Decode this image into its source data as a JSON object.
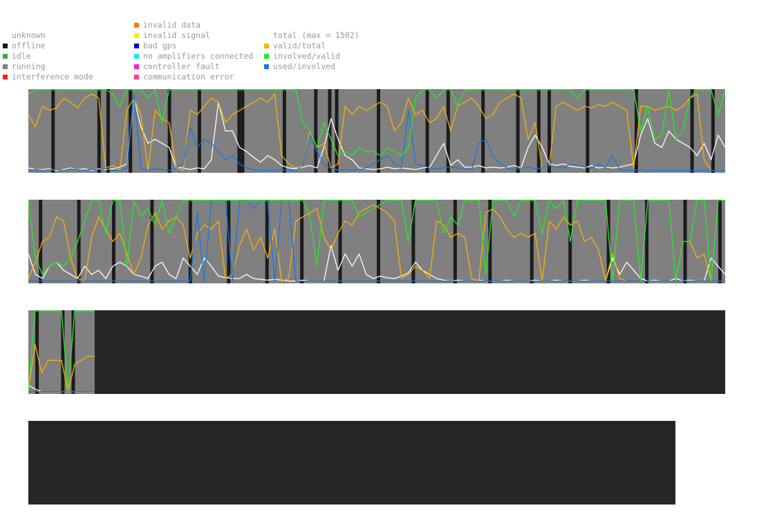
{
  "legend": {
    "status_column_a": [
      {
        "label": "unknown",
        "color": ""
      },
      {
        "label": "offline",
        "color": "#111111"
      },
      {
        "label": "idle",
        "color": "#3aa83a"
      },
      {
        "label": "running",
        "color": "#808080"
      },
      {
        "label": "interference mode",
        "color": "#ff1a1a"
      }
    ],
    "status_column_b": [
      {
        "label": "invalid data",
        "color": "#ff7a00"
      },
      {
        "label": "invalid signal",
        "color": "#f0f000"
      },
      {
        "label": "bad gps",
        "color": "#0000e0"
      },
      {
        "label": "no amplifiers connected",
        "color": "#19e8e8"
      },
      {
        "label": "controller fault",
        "color": "#ff1ad9"
      },
      {
        "label": "communication error",
        "color": "#ff3d84"
      }
    ],
    "series_column": [
      {
        "label": "total (max = 1502)",
        "color": ""
      },
      {
        "label": "valid/total",
        "color": "#ffb000"
      },
      {
        "label": "involved/valid",
        "color": "#22ee22"
      },
      {
        "label": "used/involved",
        "color": "#1478e0"
      }
    ]
  },
  "chart_data": [
    {
      "type": "line",
      "panel": 1,
      "ylim": [
        0,
        1
      ],
      "status_segments": [
        {
          "status": "running",
          "start": 0,
          "end": 1
        }
      ],
      "offline_marks": [
        0.033,
        0.099,
        0.112,
        0.144,
        0.2,
        0.243,
        0.3,
        0.305,
        0.365,
        0.41,
        0.43,
        0.44,
        0.5,
        0.57,
        0.6,
        0.65,
        0.7,
        0.73,
        0.745,
        0.8,
        0.87,
        0.95,
        0.98
      ],
      "series": [
        {
          "key": "total",
          "color": "#ffffff",
          "values": [
            0.05,
            0.03,
            0.03,
            0.04,
            0.02,
            0.03,
            0.05,
            0.03,
            0.04,
            0.02,
            0.04,
            0.03,
            0.04,
            0.06,
            0.1,
            0.9,
            0.55,
            0.35,
            0.4,
            0.35,
            0.3,
            0.06,
            0.05,
            0.03,
            0.05,
            0.04,
            0.15,
            0.85,
            0.5,
            0.5,
            0.3,
            0.25,
            0.18,
            0.12,
            0.2,
            0.15,
            0.08,
            0.05,
            0.04,
            0.06,
            0.08,
            0.05,
            0.3,
            0.65,
            0.4,
            0.2,
            0.15,
            0.05,
            0.04,
            0.03,
            0.04,
            0.06,
            0.04,
            0.05,
            0.04,
            0.03,
            0.05,
            0.06,
            0.2,
            0.35,
            0.08,
            0.15,
            0.06,
            0.06,
            0.08,
            0.05,
            0.06,
            0.05,
            0.06,
            0.08,
            0.05,
            0.3,
            0.45,
            0.3,
            0.1,
            0.08,
            0.1,
            0.07,
            0.06,
            0.05,
            0.08,
            0.05,
            0.06,
            0.05,
            0.06,
            0.08,
            0.1,
            0.45,
            0.65,
            0.35,
            0.3,
            0.5,
            0.4,
            0.35,
            0.3,
            0.2,
            0.35,
            0.15,
            0.45,
            0.3
          ]
        },
        {
          "key": "valid_total",
          "color": "#ffb000",
          "values": [
            0.7,
            0.55,
            0.8,
            0.75,
            0.78,
            0.9,
            0.85,
            0.78,
            0.9,
            0.95,
            0.9,
            0.05,
            0.08,
            0.02,
            0.75,
            0.9,
            0.7,
            0.02,
            0.75,
            0.65,
            0.6,
            0.05,
            0.02,
            0.75,
            0.7,
            0.8,
            0.9,
            0.85,
            0.6,
            0.7,
            0.75,
            0.8,
            0.85,
            0.9,
            0.85,
            0.95,
            0.2,
            0.1,
            0.05,
            0.08,
            0.5,
            0.3,
            0.35,
            0.05,
            0.1,
            0.8,
            0.7,
            0.8,
            0.75,
            0.8,
            0.85,
            0.8,
            0.5,
            0.6,
            0.9,
            0.7,
            0.75,
            0.6,
            0.65,
            0.8,
            0.5,
            0.8,
            0.85,
            0.9,
            0.8,
            0.65,
            0.7,
            0.85,
            0.9,
            0.95,
            0.9,
            0.4,
            0.6,
            0.05,
            0.08,
            0.8,
            0.85,
            0.8,
            0.75,
            0.8,
            0.78,
            0.82,
            0.8,
            0.85,
            0.8,
            0.75,
            0.05,
            0.8,
            0.8,
            0.75,
            0.78,
            0.8,
            0.75,
            0.8,
            0.9,
            0.95,
            0.15,
            0.02,
            0.02,
            0.02
          ]
        },
        {
          "key": "involved_valid",
          "color": "#22ee22",
          "values": [
            0.95,
            1.0,
            1.0,
            1.0,
            1.0,
            1.0,
            1.0,
            1.0,
            1.0,
            1.0,
            1.0,
            1.0,
            0.95,
            0.8,
            1.0,
            1.0,
            1.0,
            0.9,
            1.0,
            0.6,
            1.0,
            1.0,
            1.0,
            1.0,
            1.0,
            1.0,
            1.0,
            1.0,
            1.0,
            1.0,
            1.0,
            1.0,
            1.0,
            1.0,
            1.0,
            1.0,
            1.0,
            1.0,
            1.0,
            0.6,
            0.5,
            0.3,
            0.6,
            0.4,
            0.2,
            0.25,
            0.2,
            0.3,
            0.25,
            0.25,
            0.2,
            0.3,
            0.25,
            0.2,
            0.3,
            0.9,
            1.0,
            1.0,
            0.9,
            1.0,
            1.0,
            0.8,
            1.0,
            1.0,
            1.0,
            1.0,
            1.0,
            1.0,
            1.0,
            1.0,
            1.0,
            1.0,
            1.0,
            1.0,
            1.0,
            1.0,
            1.0,
            1.0,
            0.9,
            1.0,
            1.0,
            1.0,
            1.0,
            1.0,
            1.0,
            1.0,
            1.0,
            0.5,
            0.8,
            0.4,
            0.45,
            1.0,
            0.4,
            0.5,
            0.9,
            1.0,
            1.0,
            1.0,
            0.7,
            1.0
          ]
        },
        {
          "key": "used_involved",
          "color": "#1478e0",
          "values": [
            0.02,
            0.03,
            0.02,
            0.03,
            0.03,
            0.02,
            0.04,
            0.03,
            0.02,
            0.03,
            0.03,
            0.04,
            0.02,
            0.02,
            0.05,
            0.95,
            0.05,
            0.02,
            0.04,
            0.03,
            0.02,
            0.05,
            0.1,
            0.55,
            0.3,
            0.4,
            0.35,
            0.25,
            0.15,
            0.2,
            0.1,
            0.05,
            0.03,
            0.02,
            0.02,
            0.02,
            0.03,
            0.02,
            0.02,
            0.08,
            0.45,
            0.25,
            0.1,
            0.05,
            0.02,
            0.03,
            0.02,
            0.03,
            0.05,
            0.1,
            0.15,
            0.2,
            0.1,
            0.05,
            0.75,
            0.1,
            0.08,
            0.05,
            0.04,
            0.05,
            0.06,
            0.05,
            0.04,
            0.03,
            0.35,
            0.4,
            0.2,
            0.1,
            0.05,
            0.03,
            0.05,
            0.06,
            0.04,
            0.05,
            0.08,
            0.06,
            0.05,
            0.1,
            0.08,
            0.06,
            0.05,
            0.1,
            0.05,
            0.2,
            0.03,
            0.02,
            0.02,
            0.03,
            0.02,
            0.02,
            0.02,
            0.02,
            0.02,
            0.02,
            0.02,
            0.02,
            0.02,
            0.02,
            0.02,
            0.02
          ]
        }
      ]
    },
    {
      "type": "line",
      "panel": 2,
      "ylim": [
        0,
        1
      ],
      "status_segments": [
        {
          "status": "running",
          "start": 0,
          "end": 1
        }
      ],
      "offline_marks": [
        0.015,
        0.07,
        0.12,
        0.175,
        0.23,
        0.285,
        0.34,
        0.39,
        0.445,
        0.5,
        0.55,
        0.61,
        0.66,
        0.72,
        0.775,
        0.83,
        0.885,
        0.94,
        0.99
      ],
      "series": [
        {
          "key": "total",
          "color": "#ffffff",
          "values": [
            0.35,
            0.1,
            0.05,
            0.2,
            0.25,
            0.15,
            0.1,
            0.05,
            0.2,
            0.1,
            0.15,
            0.05,
            0.2,
            0.25,
            0.2,
            0.1,
            0.08,
            0.05,
            0.2,
            0.25,
            0.1,
            0.05,
            0.3,
            0.2,
            0.1,
            0.3,
            0.2,
            0.08,
            0.06,
            0.05,
            0.05,
            0.1,
            0.05,
            0.04,
            0.03,
            0.04,
            0.03,
            0.02,
            0.02,
            0.03,
            0.02,
            0.02,
            0.02,
            0.45,
            0.15,
            0.35,
            0.2,
            0.35,
            0.1,
            0.05,
            0.08,
            0.06,
            0.05,
            0.08,
            0.12,
            0.25,
            0.15,
            0.1,
            0.05,
            0.03,
            0.02,
            0.03,
            0.02,
            0.02,
            0.03,
            0.02,
            0.02,
            0.02,
            0.03,
            0.02,
            0.02,
            0.02,
            0.03,
            0.02,
            0.02,
            0.03,
            0.02,
            0.02,
            0.02,
            0.03,
            0.02,
            0.02,
            0.02,
            0.3,
            0.1,
            0.25,
            0.15,
            0.05,
            0.02,
            0.03,
            0.02,
            0.02,
            0.05,
            0.02,
            0.03,
            0.02,
            0.02,
            0.3,
            0.2,
            0.1
          ]
        },
        {
          "key": "valid_total",
          "color": "#ffb000",
          "values": [
            0.05,
            0.25,
            0.5,
            0.55,
            0.8,
            0.75,
            0.3,
            0.05,
            0.02,
            0.55,
            0.8,
            0.65,
            0.5,
            0.6,
            0.35,
            0.1,
            0.3,
            0.7,
            0.85,
            0.65,
            0.75,
            0.8,
            0.7,
            0.3,
            0.6,
            0.7,
            0.65,
            0.75,
            0.05,
            0.1,
            0.45,
            0.65,
            0.4,
            0.55,
            0.3,
            0.65,
            0.02,
            0.05,
            0.75,
            0.8,
            0.85,
            0.9,
            0.55,
            0.4,
            0.6,
            0.75,
            0.7,
            0.85,
            0.9,
            0.95,
            0.9,
            0.85,
            0.75,
            0.05,
            0.1,
            0.2,
            0.15,
            0.05,
            0.75,
            0.7,
            0.55,
            0.6,
            0.55,
            0.05,
            0.02,
            0.85,
            0.9,
            0.8,
            0.65,
            0.55,
            0.6,
            0.55,
            0.6,
            0.02,
            0.75,
            0.65,
            0.8,
            0.7,
            0.75,
            0.5,
            0.55,
            0.4,
            0.02,
            0.35,
            0.05,
            0.02,
            0.02,
            0.02,
            0.02,
            0.02,
            0.02,
            0.02,
            0.02,
            0.5,
            0.5,
            0.3,
            0.35,
            0.02,
            0.02,
            0.02
          ]
        },
        {
          "key": "involved_valid",
          "color": "#22ee22",
          "values": [
            1.0,
            0.3,
            0.1,
            0.2,
            0.25,
            0.2,
            0.3,
            0.5,
            0.75,
            1.0,
            1.0,
            0.6,
            1.0,
            1.0,
            0.2,
            1.0,
            0.8,
            0.9,
            0.7,
            1.0,
            0.6,
            0.8,
            1.0,
            1.0,
            1.0,
            1.0,
            1.0,
            1.0,
            1.0,
            1.0,
            1.0,
            1.0,
            1.0,
            1.0,
            1.0,
            1.0,
            1.0,
            1.0,
            1.0,
            1.0,
            0.8,
            0.2,
            1.0,
            1.0,
            1.0,
            1.0,
            1.0,
            0.8,
            0.85,
            0.9,
            0.95,
            1.0,
            1.0,
            1.0,
            0.5,
            1.0,
            1.0,
            1.0,
            1.0,
            0.6,
            0.8,
            0.7,
            1.0,
            1.0,
            1.0,
            0.1,
            1.0,
            1.0,
            1.0,
            0.8,
            1.0,
            1.0,
            1.0,
            0.6,
            1.0,
            0.9,
            1.0,
            0.5,
            1.0,
            1.0,
            1.0,
            1.0,
            1.0,
            0.02,
            1.0,
            1.0,
            1.0,
            0.02,
            1.0,
            1.0,
            1.0,
            1.0,
            0.02,
            0.5,
            0.5,
            1.0,
            1.0,
            0.02,
            1.0,
            1.0
          ]
        },
        {
          "key": "used_involved",
          "color": "#1478e0",
          "values": [
            0.02,
            0.02,
            0.02,
            0.02,
            0.02,
            0.02,
            0.02,
            0.02,
            0.02,
            0.02,
            0.02,
            0.02,
            0.02,
            0.02,
            0.02,
            0.02,
            0.02,
            0.02,
            0.02,
            0.02,
            0.02,
            0.02,
            0.02,
            0.02,
            0.85,
            0.02,
            1.0,
            1.0,
            1.0,
            0.02,
            1.0,
            1.0,
            0.9,
            1.0,
            1.0,
            0.02,
            1.0,
            1.0,
            0.02,
            0.02,
            0.02,
            0.02,
            0.02,
            0.02,
            0.02,
            0.02,
            0.02,
            0.02,
            0.02,
            0.02,
            0.02,
            0.02,
            0.02,
            0.02,
            0.02,
            0.02,
            0.02,
            0.02,
            0.02,
            0.02,
            0.02,
            0.02,
            0.02,
            0.02,
            0.02,
            0.02,
            0.02,
            0.02,
            0.02,
            0.02,
            0.02,
            0.02,
            0.02,
            0.02,
            0.02,
            0.02,
            0.02,
            0.02,
            0.02,
            0.02,
            0.02,
            0.02,
            0.02,
            0.02,
            0.02,
            0.02,
            0.02,
            0.02,
            0.02,
            0.02,
            0.02,
            0.02,
            0.02,
            0.02,
            0.02,
            0.02,
            0.02,
            0.02,
            0.02,
            0.02
          ]
        }
      ]
    },
    {
      "type": "line",
      "panel": 3,
      "ylim": [
        0,
        1
      ],
      "status_segments": [
        {
          "status": "running",
          "start": 0,
          "end": 0.095
        },
        {
          "status": "offline",
          "start": 0.095,
          "end": 1
        }
      ],
      "offline_marks": [
        0.01,
        0.047,
        0.062
      ],
      "series": [
        {
          "key": "total",
          "color": "#ffffff",
          "values": [
            0.1,
            0.05,
            0.02,
            0.02,
            0.02,
            0.02,
            0.02,
            0.02,
            0.02,
            0.02,
            0.02
          ]
        },
        {
          "key": "valid_total",
          "color": "#ffb000",
          "values": [
            0.02,
            0.6,
            0.25,
            0.4,
            0.4,
            0.4,
            0.02,
            0.35,
            0.4,
            0.45,
            0.45
          ]
        },
        {
          "key": "involved_valid",
          "color": "#22ee22",
          "values": [
            0.02,
            1.0,
            1.0,
            1.0,
            1.0,
            1.0,
            0.02,
            1.0,
            1.0,
            1.0,
            1.0
          ]
        },
        {
          "key": "used_involved",
          "color": "#1478e0",
          "values": [
            0.02,
            0.02,
            0.02,
            0.02,
            0.02,
            0.02,
            0.02,
            0.02,
            0.02,
            0.02,
            0.02
          ]
        }
      ]
    },
    {
      "type": "line",
      "panel": 4,
      "ylim": [
        0,
        1
      ],
      "status_segments": [
        {
          "status": "offline",
          "start": 0,
          "end": 1
        }
      ],
      "offline_marks": [],
      "series": []
    }
  ]
}
